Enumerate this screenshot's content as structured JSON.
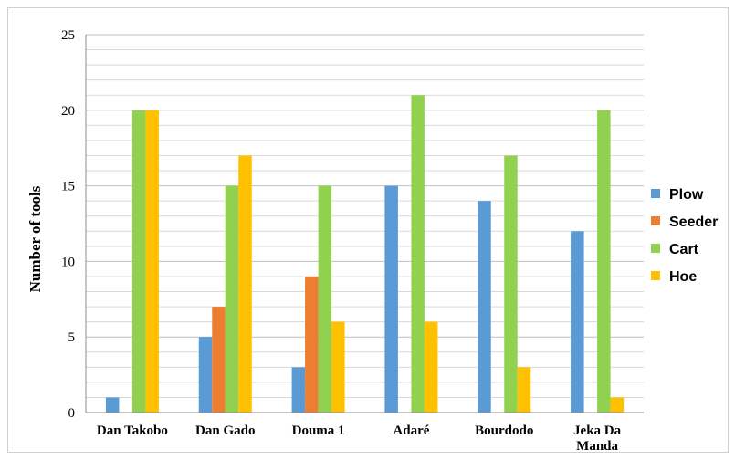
{
  "chart_data": {
    "type": "bar",
    "title": "",
    "xlabel": "",
    "ylabel": "Number of tools",
    "ylim": [
      0,
      25
    ],
    "yticks": [
      0,
      5,
      10,
      15,
      20,
      25
    ],
    "minor_grid_step": 1,
    "grid": true,
    "legend_position": "right",
    "categories": [
      "Dan Takobo",
      "Dan Gado",
      "Douma 1",
      "Adaré",
      "Bourdodo",
      "Jeka Da Manda"
    ],
    "series": [
      {
        "name": "Plow",
        "color": "#5b9bd5",
        "values": [
          1,
          5,
          3,
          15,
          14,
          12
        ]
      },
      {
        "name": "Seeder",
        "color": "#ed7d31",
        "values": [
          0,
          7,
          9,
          0,
          0,
          0
        ]
      },
      {
        "name": "Cart",
        "color": "#92d050",
        "values": [
          20,
          15,
          15,
          21,
          17,
          20
        ]
      },
      {
        "name": "Hoe",
        "color": "#ffc000",
        "values": [
          20,
          17,
          6,
          6,
          3,
          1
        ]
      }
    ]
  }
}
